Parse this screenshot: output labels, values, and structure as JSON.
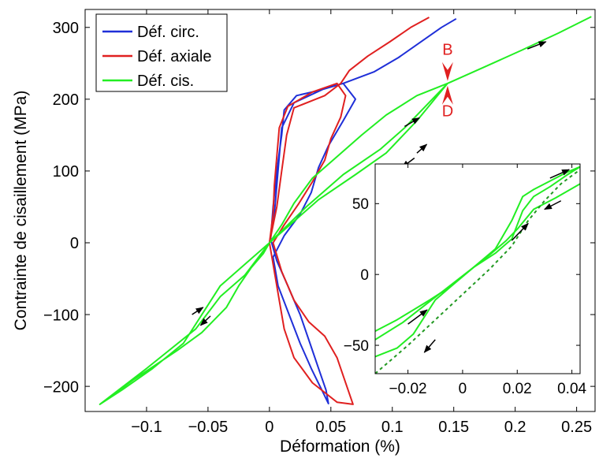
{
  "chart_data": [
    {
      "type": "line",
      "xlabel": "Déformation (%)",
      "ylabel": "Contrainte de cisaillement (MPa)",
      "xlim": [
        -0.15,
        0.265
      ],
      "ylim": [
        -235,
        325
      ],
      "xticks": [
        -0.1,
        -0.05,
        0,
        0.05,
        0.1,
        0.15,
        0.2,
        0.25
      ],
      "xticklabels": [
        "−0.1",
        "−0.05",
        "0",
        "0.05",
        "0.1",
        "0.15",
        "0.2",
        "0.25"
      ],
      "yticks": [
        -200,
        -100,
        0,
        100,
        200,
        300
      ],
      "yticklabels": [
        "−200",
        "−100",
        "0",
        "100",
        "200",
        "300"
      ],
      "legend_position": "top-left",
      "grid": false,
      "series": [
        {
          "name": "Déf. circ.",
          "color": "#1f2fd8",
          "points": [
            [
              0.0,
              0
            ],
            [
              0.004,
              40
            ],
            [
              0.006,
              80
            ],
            [
              0.008,
              120
            ],
            [
              0.01,
              160
            ],
            [
              0.02,
              195
            ],
            [
              0.045,
              215
            ],
            [
              0.06,
              222
            ],
            [
              0.07,
              200
            ],
            [
              0.06,
              170
            ],
            [
              0.048,
              135
            ],
            [
              0.04,
              105
            ],
            [
              0.034,
              70
            ],
            [
              0.025,
              40
            ],
            [
              0.012,
              10
            ],
            [
              0.003,
              -20
            ],
            [
              0.007,
              -60
            ],
            [
              0.016,
              -100
            ],
            [
              0.025,
              -140
            ],
            [
              0.034,
              -175
            ],
            [
              0.044,
              -210
            ],
            [
              0.048,
              -224
            ],
            [
              0.046,
              -205
            ],
            [
              0.04,
              -175
            ],
            [
              0.033,
              -140
            ],
            [
              0.025,
              -100
            ],
            [
              0.015,
              -60
            ],
            [
              0.006,
              -25
            ],
            [
              0.001,
              5
            ],
            [
              0.003,
              50
            ],
            [
              0.006,
              100
            ],
            [
              0.01,
              150
            ],
            [
              0.012,
              185
            ],
            [
              0.022,
              205
            ],
            [
              0.04,
              212
            ],
            [
              0.06,
              222
            ],
            [
              0.085,
              238
            ],
            [
              0.105,
              258
            ],
            [
              0.125,
              282
            ],
            [
              0.14,
              300
            ],
            [
              0.152,
              312
            ]
          ]
        },
        {
          "name": "Déf. axiale",
          "color": "#e02020",
          "points": [
            [
              0.0,
              0
            ],
            [
              0.003,
              40
            ],
            [
              0.004,
              80
            ],
            [
              0.006,
              120
            ],
            [
              0.008,
              160
            ],
            [
              0.015,
              190
            ],
            [
              0.035,
              210
            ],
            [
              0.055,
              222
            ],
            [
              0.062,
              205
            ],
            [
              0.058,
              175
            ],
            [
              0.05,
              145
            ],
            [
              0.045,
              115
            ],
            [
              0.035,
              85
            ],
            [
              0.024,
              55
            ],
            [
              0.012,
              25
            ],
            [
              0.003,
              0
            ],
            [
              0.01,
              -40
            ],
            [
              0.02,
              -80
            ],
            [
              0.032,
              -110
            ],
            [
              0.045,
              -130
            ],
            [
              0.055,
              -160
            ],
            [
              0.062,
              -195
            ],
            [
              0.068,
              -225
            ],
            [
              0.055,
              -222
            ],
            [
              0.035,
              -195
            ],
            [
              0.02,
              -160
            ],
            [
              0.012,
              -120
            ],
            [
              0.008,
              -80
            ],
            [
              0.004,
              -40
            ],
            [
              0.0,
              0
            ],
            [
              0.006,
              50
            ],
            [
              0.01,
              100
            ],
            [
              0.014,
              150
            ],
            [
              0.02,
              188
            ],
            [
              0.045,
              205
            ],
            [
              0.058,
              222
            ],
            [
              0.065,
              240
            ],
            [
              0.08,
              260
            ],
            [
              0.098,
              280
            ],
            [
              0.115,
              300
            ],
            [
              0.13,
              314
            ]
          ]
        },
        {
          "name": "Déf. cis.",
          "color": "#22ee22",
          "points": [
            [
              -0.138,
              -225
            ],
            [
              -0.11,
              -190
            ],
            [
              -0.075,
              -150
            ],
            [
              -0.055,
              -125
            ],
            [
              -0.035,
              -90
            ],
            [
              -0.025,
              -60
            ],
            [
              -0.015,
              -35
            ],
            [
              -0.005,
              -15
            ],
            [
              0.0,
              0
            ],
            [
              0.02,
              30
            ],
            [
              0.04,
              60
            ],
            [
              0.07,
              95
            ],
            [
              0.095,
              125
            ],
            [
              0.12,
              170
            ],
            [
              0.145,
              222
            ],
            [
              0.12,
              205
            ],
            [
              0.095,
              178
            ],
            [
              0.075,
              150
            ],
            [
              0.055,
              120
            ],
            [
              0.035,
              90
            ],
            [
              0.02,
              55
            ],
            [
              0.01,
              25
            ],
            [
              0.0,
              0
            ],
            [
              -0.02,
              -30
            ],
            [
              -0.04,
              -60
            ],
            [
              -0.055,
              -100
            ],
            [
              -0.07,
              -140
            ],
            [
              -0.095,
              -175
            ],
            [
              -0.12,
              -205
            ],
            [
              -0.138,
              -225
            ],
            [
              -0.1,
              -175
            ],
            [
              -0.06,
              -120
            ],
            [
              -0.04,
              -75
            ],
            [
              -0.02,
              -45
            ],
            [
              0.0,
              0
            ],
            [
              0.03,
              50
            ],
            [
              0.06,
              95
            ],
            [
              0.09,
              130
            ],
            [
              0.11,
              160
            ],
            [
              0.145,
              222
            ],
            [
              0.175,
              245
            ],
            [
              0.205,
              268
            ],
            [
              0.235,
              292
            ],
            [
              0.262,
              315
            ]
          ]
        }
      ],
      "annotations": [
        {
          "text": "B",
          "x": 0.145,
          "y": 262,
          "color": "#e02020"
        },
        {
          "text": "D",
          "x": 0.145,
          "y": 176,
          "color": "#e02020"
        }
      ],
      "arrows": [
        {
          "from": [
            0.21,
            270
          ],
          "to": [
            0.225,
            280
          ]
        },
        {
          "from": [
            0.11,
            162
          ],
          "to": [
            0.122,
            174
          ]
        },
        {
          "from": [
            0.12,
            125
          ],
          "to": [
            0.128,
            137
          ]
        },
        {
          "from": [
            0.118,
            118
          ],
          "to": [
            0.108,
            105
          ]
        },
        {
          "from": [
            -0.063,
            -100
          ],
          "to": [
            -0.054,
            -90
          ]
        },
        {
          "from": [
            -0.048,
            -102
          ],
          "to": [
            -0.056,
            -115
          ]
        }
      ]
    },
    {
      "type": "line",
      "inset": true,
      "xlim": [
        -0.032,
        0.043
      ],
      "ylim": [
        -70,
        78
      ],
      "xticks": [
        -0.02,
        0,
        0.02,
        0.04
      ],
      "xticklabels": [
        "−0.02",
        "0",
        "0.02",
        "0.04"
      ],
      "yticks": [
        -50,
        0,
        50
      ],
      "yticklabels": [
        "−50",
        "0",
        "50"
      ],
      "series": [
        {
          "color": "#22ee22",
          "points": [
            [
              -0.032,
              -40
            ],
            [
              -0.024,
              -32
            ],
            [
              -0.018,
              -25
            ],
            [
              -0.012,
              -18
            ],
            [
              -0.004,
              -8
            ],
            [
              0.004,
              5
            ],
            [
              0.012,
              15
            ],
            [
              0.018,
              25
            ],
            [
              0.022,
              45
            ],
            [
              0.026,
              55
            ],
            [
              0.032,
              62
            ],
            [
              0.038,
              70
            ],
            [
              0.043,
              76
            ],
            [
              0.038,
              72
            ],
            [
              0.032,
              66
            ],
            [
              0.026,
              60
            ],
            [
              0.022,
              55
            ],
            [
              0.018,
              38
            ],
            [
              0.012,
              18
            ],
            [
              0.004,
              5
            ],
            [
              -0.004,
              -8
            ],
            [
              -0.01,
              -18
            ],
            [
              -0.014,
              -30
            ],
            [
              -0.018,
              -42
            ],
            [
              -0.024,
              -52
            ],
            [
              -0.032,
              -58
            ]
          ]
        },
        {
          "color": "#22ee22",
          "points": [
            [
              -0.032,
              -46
            ],
            [
              -0.022,
              -34
            ],
            [
              -0.014,
              -22
            ],
            [
              -0.006,
              -10
            ],
            [
              0.002,
              2
            ],
            [
              0.01,
              14
            ],
            [
              0.016,
              24
            ],
            [
              0.02,
              32
            ],
            [
              0.026,
              46
            ],
            [
              0.034,
              54
            ],
            [
              0.043,
              64
            ]
          ]
        },
        {
          "color": "#229922",
          "dashed": true,
          "points": [
            [
              -0.032,
              -70
            ],
            [
              -0.02,
              -50
            ],
            [
              -0.01,
              -32
            ],
            [
              0.0,
              -14
            ],
            [
              0.01,
              4
            ],
            [
              0.018,
              20
            ],
            [
              0.024,
              38
            ],
            [
              0.03,
              52
            ],
            [
              0.036,
              64
            ],
            [
              0.043,
              74
            ]
          ]
        }
      ],
      "arrows": [
        {
          "from": [
            -0.02,
            -35
          ],
          "to": [
            -0.013,
            -25
          ]
        },
        {
          "from": [
            -0.01,
            -46
          ],
          "to": [
            -0.014,
            -55
          ]
        },
        {
          "from": [
            0.018,
            24
          ],
          "to": [
            0.024,
            36
          ]
        },
        {
          "from": [
            0.032,
            68
          ],
          "to": [
            0.039,
            74
          ]
        },
        {
          "from": [
            0.036,
            52
          ],
          "to": [
            0.03,
            46
          ]
        }
      ]
    }
  ]
}
